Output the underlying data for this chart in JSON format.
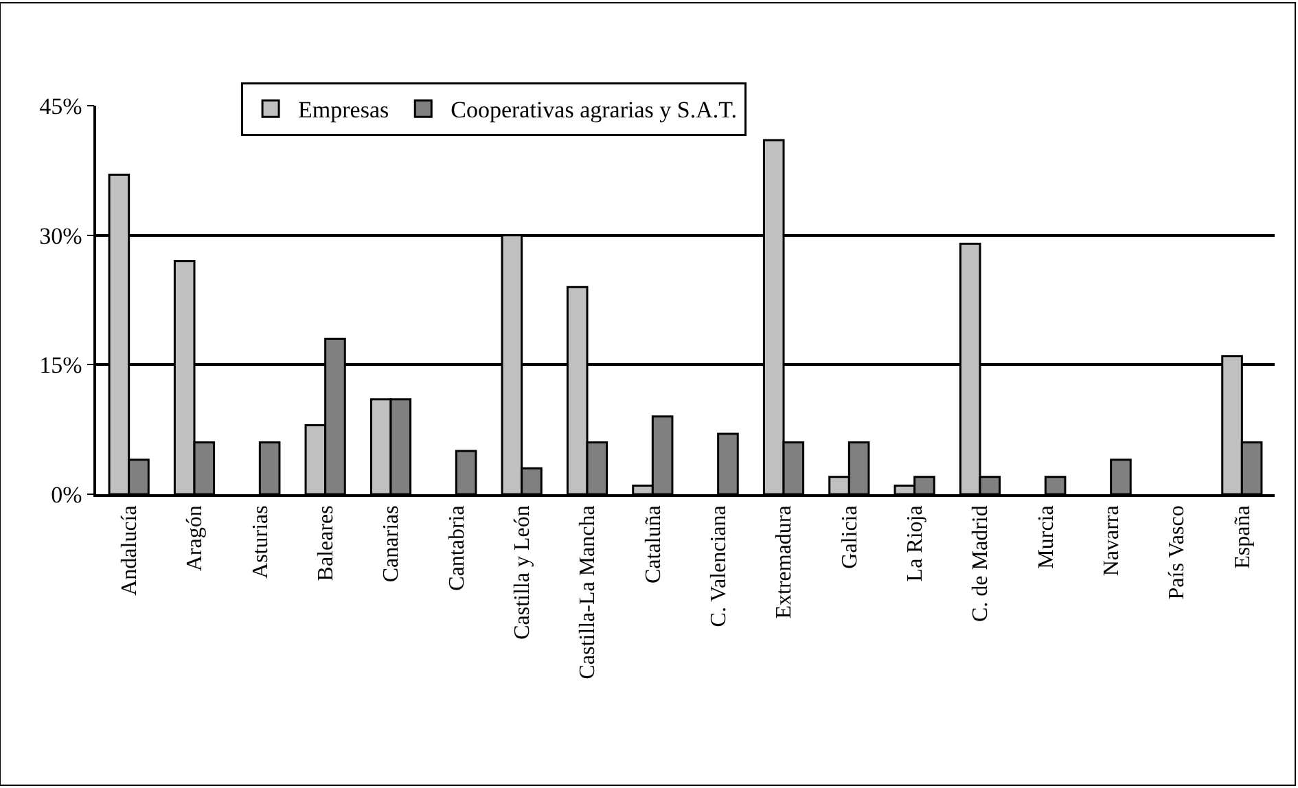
{
  "chart_data": {
    "type": "bar",
    "categories": [
      "Andalucía",
      "Aragón",
      "Asturias",
      "Baleares",
      "Canarias",
      "Cantabria",
      "Castilla y León",
      "Castilla-La Mancha",
      "Cataluña",
      "C. Valenciana",
      "Extremadura",
      "Galicia",
      "La Rioja",
      "C. de Madrid",
      "Murcia",
      "Navarra",
      "País Vasco",
      "España"
    ],
    "series": [
      {
        "name": "Empresas",
        "color": "#c0c0c0",
        "values": [
          37,
          27,
          null,
          8,
          11,
          null,
          30,
          24,
          1,
          null,
          41,
          2,
          1,
          29,
          null,
          null,
          null,
          16
        ]
      },
      {
        "name": "Cooperativas agrarias y S.A.T.",
        "color": "#808080",
        "values": [
          4,
          6,
          6,
          18,
          11,
          5,
          3,
          6,
          9,
          7,
          6,
          6,
          2,
          2,
          2,
          4,
          null,
          6
        ]
      }
    ],
    "ylim": [
      0,
      45
    ],
    "yticks": [
      {
        "value": 0,
        "label": "0%"
      },
      {
        "value": 15,
        "label": "15%"
      },
      {
        "value": 30,
        "label": "30%"
      },
      {
        "value": 45,
        "label": "45%"
      }
    ],
    "grid": "y",
    "legend": "top"
  }
}
